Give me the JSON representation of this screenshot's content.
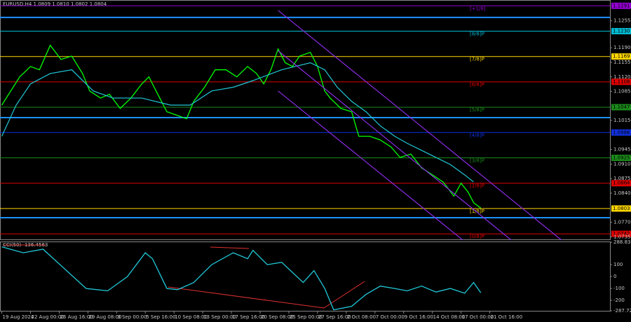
{
  "chart_data": [
    {
      "type": "line",
      "title": "EURUSD,H4  1.0809 1.0810 1.0802 1.0804",
      "xlim": [
        -1,
        339
      ],
      "ylim": [
        1.0727,
        1.1305
      ],
      "xticks": [
        {
          "value": 0,
          "label": "19 Aug 2024"
        },
        {
          "value": 16,
          "label": "22 Aug 00:00"
        },
        {
          "value": 32,
          "label": "26 Aug 16:00"
        },
        {
          "value": 48,
          "label": "29 Aug 08:00"
        },
        {
          "value": 64,
          "label": "3 Sep 00:00"
        },
        {
          "value": 80,
          "label": "5 Sep 16:00"
        },
        {
          "value": 96,
          "label": "10 Sep 08:00"
        },
        {
          "value": 112,
          "label": "13 Sep 00:00"
        },
        {
          "value": 128,
          "label": "17 Sep 16:00"
        },
        {
          "value": 144,
          "label": "20 Sep 08:00"
        },
        {
          "value": 160,
          "label": "25 Sep 00:00"
        },
        {
          "value": 176,
          "label": "27 Sep 16:00"
        },
        {
          "value": 192,
          "label": "2 Oct 08:00"
        },
        {
          "value": 208,
          "label": "7 Oct 00:00"
        },
        {
          "value": 224,
          "label": "9 Oct 16:00"
        },
        {
          "value": 240,
          "label": "14 Oct 08:00"
        },
        {
          "value": 256,
          "label": "17 Oct 00:00"
        },
        {
          "value": 272,
          "label": "21 Oct 16:00"
        }
      ],
      "yticks": [
        {
          "value": 1.1255,
          "label": "1.1255"
        },
        {
          "value": 1.119,
          "label": "1.1190"
        },
        {
          "value": 1.1155,
          "label": "1.1155"
        },
        {
          "value": 1.112,
          "label": "1.1120"
        },
        {
          "value": 1.1085,
          "label": "1.1085"
        },
        {
          "value": 1.1015,
          "label": "1.1015"
        },
        {
          "value": 1.0945,
          "label": "1.0945"
        },
        {
          "value": 1.091,
          "label": "1.0910"
        },
        {
          "value": 1.0875,
          "label": "1.0875"
        },
        {
          "value": 1.084,
          "label": "1.0840"
        },
        {
          "value": 1.077,
          "label": "1.0770"
        },
        {
          "value": 1.0735,
          "label": "1.0735"
        }
      ],
      "series": [
        {
          "color": "#00ff00",
          "x": [
            0,
            5,
            10,
            16,
            21,
            27,
            33,
            39,
            45,
            49,
            55,
            60,
            66,
            72,
            78,
            82,
            86,
            92,
            98,
            103,
            107,
            113,
            119,
            125,
            131,
            137,
            142,
            146,
            150,
            154,
            158,
            162,
            166,
            172,
            176,
            180,
            183,
            189,
            195,
            199,
            205,
            211,
            217,
            222,
            228,
            234,
            240,
            246,
            252,
            256,
            260,
            263,
            267
          ],
          "values": [
            1.1052,
            1.1086,
            1.112,
            1.1145,
            1.1137,
            1.1196,
            1.1162,
            1.117,
            1.1128,
            1.1086,
            1.1069,
            1.1078,
            1.1044,
            1.1069,
            1.1103,
            1.112,
            1.1086,
            1.1036,
            1.1027,
            1.1019,
            1.1061,
            1.1095,
            1.1137,
            1.1137,
            1.112,
            1.1145,
            1.1128,
            1.1103,
            1.1137,
            1.1187,
            1.1154,
            1.1145,
            1.117,
            1.1179,
            1.1145,
            1.1086,
            1.1069,
            1.1044,
            1.1036,
            1.0977,
            1.0977,
            1.0968,
            1.0951,
            1.0926,
            1.0934,
            1.0901,
            1.0884,
            1.0867,
            1.0833,
            1.0864,
            1.0842,
            1.0817,
            1.0804
          ]
        },
        {
          "color": "#20c8d8",
          "x": [
            0,
            8,
            16,
            27,
            39,
            51,
            62,
            78,
            94,
            105,
            117,
            129,
            140,
            156,
            172,
            180,
            187,
            195,
            203,
            211,
            219,
            226,
            234,
            242,
            250,
            258,
            263
          ],
          "values": [
            1.0977,
            1.1052,
            1.1103,
            1.1128,
            1.1137,
            1.1086,
            1.1069,
            1.1069,
            1.1052,
            1.1052,
            1.1086,
            1.1095,
            1.1111,
            1.1137,
            1.1154,
            1.1137,
            1.1095,
            1.1061,
            1.1036,
            1.1002,
            1.0977,
            1.096,
            1.0943,
            1.0926,
            1.0909,
            1.0884,
            1.0867
          ]
        },
        {
          "color": "#8a2be2",
          "x": [
            154,
            312
          ],
          "values": [
            1.128,
            1.0727
          ]
        },
        {
          "color": "#8a2be2",
          "x": [
            154,
            284
          ],
          "values": [
            1.1183,
            1.0727
          ]
        },
        {
          "color": "#8a2be2",
          "x": [
            154,
            257
          ],
          "values": [
            1.1086,
            1.0727
          ]
        }
      ],
      "hlines": [
        {
          "value": 1.1263,
          "color": "#1e90ff"
        },
        {
          "value": 1.1022,
          "color": "#1e90ff"
        },
        {
          "value": 1.0781,
          "color": "#1e90ff"
        }
      ],
      "levels": [
        {
          "label": "[+1/8]",
          "value": 1.1291,
          "value_label": "1.1291",
          "color": "#9400d3"
        },
        {
          "label": "[8/8]P",
          "value": 1.123,
          "value_label": "1.1230",
          "color": "#00bcd4"
        },
        {
          "label": "[7/8]P",
          "value": 1.1169,
          "value_label": "1.1169",
          "color": "#ffd700"
        },
        {
          "label": "[6/8]P",
          "value": 1.1108,
          "value_label": "1.1108",
          "color": "#e00000"
        },
        {
          "label": "[5/8]P",
          "value": 1.1047,
          "value_label": "1.1047",
          "color": "#1a8a1a"
        },
        {
          "label": "[4/8]P",
          "value": 1.0986,
          "value_label": "1.0986",
          "color": "#1030e0"
        },
        {
          "label": "[3/8]P",
          "value": 1.0925,
          "value_label": "1.0925",
          "color": "#1a8a1a"
        },
        {
          "label": "[2/8]P",
          "value": 1.0864,
          "value_label": "1.0864",
          "color": "#e00000"
        },
        {
          "label": "[1/8]P",
          "value": 1.0803,
          "value_label": "1.0803",
          "color": "#ffd700"
        },
        {
          "label": "[0/8]P",
          "value": 1.0742,
          "value_label": "1.0742",
          "color": "#e00000"
        }
      ]
    },
    {
      "type": "line",
      "title": "CCI(50) -136.4563",
      "xlim": [
        -1,
        339
      ],
      "ylim": [
        -287.729,
        288.8363
      ],
      "yticks": [
        288.8363,
        100,
        0,
        -100,
        -200,
        -287.729
      ],
      "series": [
        {
          "color": "#20c8d8",
          "x": [
            0,
            12,
            23,
            47,
            59,
            70,
            80,
            84,
            92,
            98,
            107,
            117,
            129,
            137,
            140,
            148,
            156,
            168,
            174,
            180,
            185,
            195,
            203,
            211,
            219,
            226,
            234,
            242,
            250,
            258,
            263,
            267
          ],
          "values": [
            250,
            200,
            230,
            -100,
            -120,
            0,
            200,
            150,
            -100,
            -110,
            -50,
            100,
            200,
            150,
            220,
            100,
            120,
            -50,
            50,
            -100,
            -280,
            -250,
            -150,
            -80,
            -100,
            -120,
            -80,
            -130,
            -100,
            -140,
            -50,
            -136
          ]
        }
      ]
    }
  ]
}
